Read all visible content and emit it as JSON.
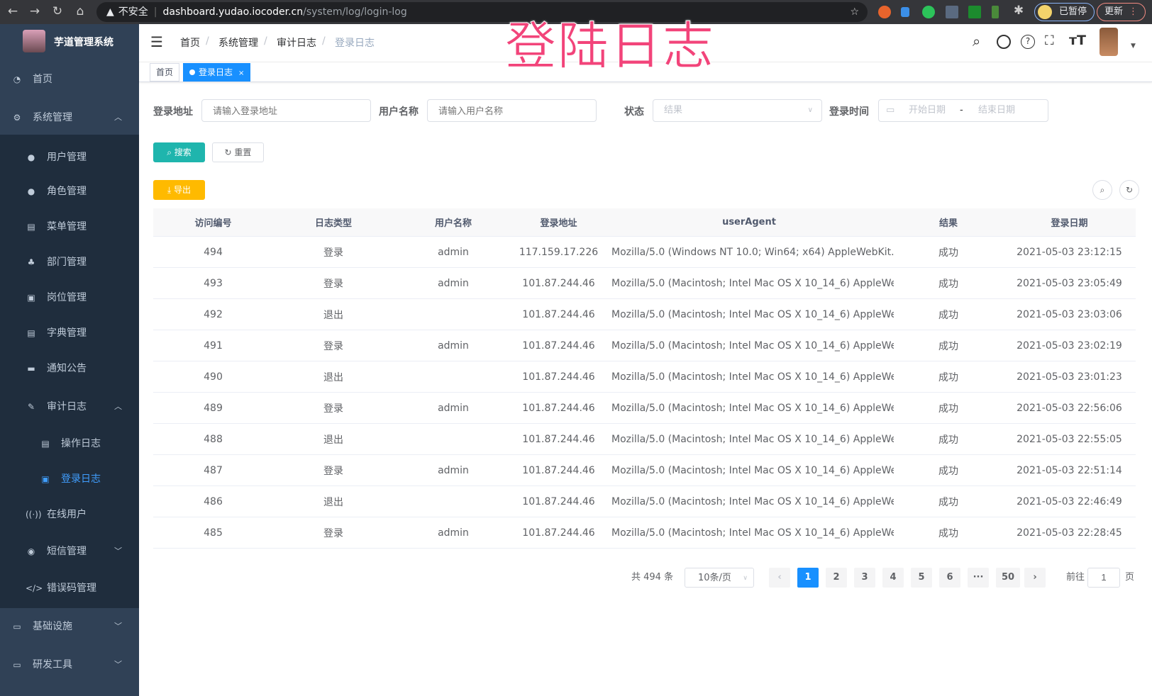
{
  "browser": {
    "security": "不安全",
    "host": "dashboard.yudao.iocoder.cn",
    "path": "/system/log/login-log",
    "profile": "已暂停",
    "update": "更新"
  },
  "overlay_title": "登陆日志",
  "app": {
    "title": "芋道管理系统"
  },
  "sidebar": {
    "items": [
      {
        "label": "首页",
        "icon": "dashboard-icon",
        "level": 0
      },
      {
        "label": "系统管理",
        "icon": "gear-icon",
        "level": 0,
        "arrow": "up"
      },
      {
        "label": "用户管理",
        "icon": "user-icon",
        "level": 1
      },
      {
        "label": "角色管理",
        "icon": "peoples-icon",
        "level": 1
      },
      {
        "label": "菜单管理",
        "icon": "tree-table-icon",
        "level": 1
      },
      {
        "label": "部门管理",
        "icon": "tree-icon",
        "level": 1
      },
      {
        "label": "岗位管理",
        "icon": "post-icon",
        "level": 1
      },
      {
        "label": "字典管理",
        "icon": "dict-icon",
        "level": 1
      },
      {
        "label": "通知公告",
        "icon": "message-icon",
        "level": 1
      },
      {
        "label": "审计日志",
        "icon": "log-icon",
        "level": 1,
        "arrow": "up"
      },
      {
        "label": "操作日志",
        "icon": "form-icon",
        "level": 2
      },
      {
        "label": "登录日志",
        "icon": "login-info-icon",
        "level": 2,
        "active": true
      },
      {
        "label": "在线用户",
        "icon": "online-icon",
        "level": 1
      },
      {
        "label": "短信管理",
        "icon": "validCode-icon",
        "level": 1,
        "arrow": "down"
      },
      {
        "label": "错误码管理",
        "icon": "code-icon",
        "level": 1
      },
      {
        "label": "基础设施",
        "icon": "monitor-icon",
        "level": 0,
        "arrow": "down"
      },
      {
        "label": "研发工具",
        "icon": "tool-icon",
        "level": 0,
        "arrow": "down"
      }
    ]
  },
  "breadcrumb": [
    "首页",
    "系统管理",
    "审计日志",
    "登录日志"
  ],
  "tags": [
    {
      "label": "首页"
    },
    {
      "label": "登录日志",
      "active": true
    }
  ],
  "filters": {
    "address": {
      "label": "登录地址",
      "placeholder": "请输入登录地址"
    },
    "username": {
      "label": "用户名称",
      "placeholder": "请输入用户名称"
    },
    "status": {
      "label": "状态",
      "placeholder": "结果"
    },
    "time": {
      "label": "登录时间",
      "start": "开始日期",
      "sep": "-",
      "end": "结束日期"
    }
  },
  "buttons": {
    "search": "搜索",
    "reset": "重置",
    "export": "导出"
  },
  "colors": {
    "sidebar": "#304156",
    "submenu": "#1f2d3d",
    "primary": "#1890ff",
    "search": "#1fb5ad",
    "export": "#ffba00",
    "active_menu": "#409eff",
    "overlay": "#f2447a"
  },
  "table": {
    "columns": [
      "访问编号",
      "日志类型",
      "用户名称",
      "登录地址",
      "userAgent",
      "结果",
      "登录日期"
    ],
    "rows": [
      [
        "494",
        "登录",
        "admin",
        "117.159.17.226",
        "Mozilla/5.0 (Windows NT 10.0; Win64; x64) AppleWebKit...",
        "成功",
        "2021-05-03 23:12:15"
      ],
      [
        "493",
        "登录",
        "admin",
        "101.87.244.46",
        "Mozilla/5.0 (Macintosh; Intel Mac OS X 10_14_6) AppleWe...",
        "成功",
        "2021-05-03 23:05:49"
      ],
      [
        "492",
        "退出",
        "",
        "101.87.244.46",
        "Mozilla/5.0 (Macintosh; Intel Mac OS X 10_14_6) AppleWe...",
        "成功",
        "2021-05-03 23:03:06"
      ],
      [
        "491",
        "登录",
        "admin",
        "101.87.244.46",
        "Mozilla/5.0 (Macintosh; Intel Mac OS X 10_14_6) AppleWe...",
        "成功",
        "2021-05-03 23:02:19"
      ],
      [
        "490",
        "退出",
        "",
        "101.87.244.46",
        "Mozilla/5.0 (Macintosh; Intel Mac OS X 10_14_6) AppleWe...",
        "成功",
        "2021-05-03 23:01:23"
      ],
      [
        "489",
        "登录",
        "admin",
        "101.87.244.46",
        "Mozilla/5.0 (Macintosh; Intel Mac OS X 10_14_6) AppleWe...",
        "成功",
        "2021-05-03 22:56:06"
      ],
      [
        "488",
        "退出",
        "",
        "101.87.244.46",
        "Mozilla/5.0 (Macintosh; Intel Mac OS X 10_14_6) AppleWe...",
        "成功",
        "2021-05-03 22:55:05"
      ],
      [
        "487",
        "登录",
        "admin",
        "101.87.244.46",
        "Mozilla/5.0 (Macintosh; Intel Mac OS X 10_14_6) AppleWe...",
        "成功",
        "2021-05-03 22:51:14"
      ],
      [
        "486",
        "退出",
        "",
        "101.87.244.46",
        "Mozilla/5.0 (Macintosh; Intel Mac OS X 10_14_6) AppleWe...",
        "成功",
        "2021-05-03 22:46:49"
      ],
      [
        "485",
        "登录",
        "admin",
        "101.87.244.46",
        "Mozilla/5.0 (Macintosh; Intel Mac OS X 10_14_6) AppleWe...",
        "成功",
        "2021-05-03 22:28:45"
      ]
    ]
  },
  "pagination": {
    "total": "共 494 条",
    "page_size": "10条/页",
    "pages": [
      "1",
      "2",
      "3",
      "4",
      "5",
      "6",
      "···",
      "50"
    ],
    "current": "1",
    "goto_label": "前往",
    "goto_value": "1",
    "goto_suffix": "页"
  }
}
